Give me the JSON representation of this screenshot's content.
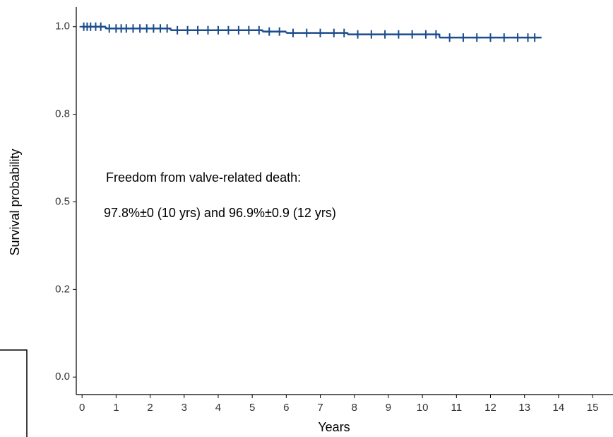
{
  "chart_data": {
    "type": "step",
    "x_label": "Years",
    "y_label": "Survival probability",
    "annotations": [
      "Freedom from valve-related death:",
      "97.8%±0 (10 yrs) and 96.9%±0.9 (12 yrs)"
    ],
    "color": "#1b4c8c",
    "x": [
      0,
      0.7,
      2.6,
      5.3,
      6.0,
      7.8,
      10.5,
      13.5
    ],
    "values": [
      1.0,
      0.995,
      0.99,
      0.986,
      0.982,
      0.978,
      0.969,
      0.969
    ],
    "censored": {
      "x": [
        0.05,
        0.15,
        0.25,
        0.4,
        0.55,
        0.8,
        1.0,
        1.15,
        1.3,
        1.5,
        1.7,
        1.9,
        2.1,
        2.3,
        2.5,
        2.8,
        3.1,
        3.4,
        3.7,
        4.0,
        4.3,
        4.6,
        4.9,
        5.2,
        5.5,
        5.8,
        6.2,
        6.6,
        7.0,
        7.4,
        7.7,
        8.1,
        8.5,
        8.9,
        9.3,
        9.7,
        10.1,
        10.4,
        10.8,
        11.2,
        11.6,
        12.0,
        12.4,
        12.8,
        13.1,
        13.3
      ],
      "values": [
        1.0,
        1.0,
        1.0,
        1.0,
        1.0,
        0.995,
        0.995,
        0.995,
        0.995,
        0.995,
        0.995,
        0.995,
        0.995,
        0.995,
        0.995,
        0.99,
        0.99,
        0.99,
        0.99,
        0.99,
        0.99,
        0.99,
        0.99,
        0.99,
        0.986,
        0.986,
        0.982,
        0.982,
        0.982,
        0.982,
        0.982,
        0.978,
        0.978,
        0.978,
        0.978,
        0.978,
        0.978,
        0.978,
        0.969,
        0.969,
        0.969,
        0.969,
        0.969,
        0.969,
        0.969,
        0.969
      ]
    },
    "xlim": [
      -0.17,
      15.6
    ],
    "ylim": [
      -0.05,
      1.056
    ],
    "xticks": [
      0,
      1,
      2,
      3,
      4,
      5,
      6,
      7,
      8,
      9,
      10,
      11,
      12,
      13,
      14,
      15
    ],
    "yticks": [
      {
        "value": 0,
        "label": "0.0"
      },
      {
        "value": 0.25,
        "label": "0.2"
      },
      {
        "value": 0.5,
        "label": "0.5"
      },
      {
        "value": 0.75,
        "label": "0.8"
      },
      {
        "value": 1,
        "label": "1.0"
      }
    ]
  }
}
